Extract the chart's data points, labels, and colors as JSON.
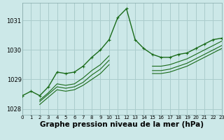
{
  "background_color": "#cce8e8",
  "grid_color": "#aacccc",
  "line_color": "#1a6b1a",
  "x_min": 0,
  "x_max": 23,
  "y_min": 1027.8,
  "y_max": 1031.6,
  "y_ticks": [
    1028,
    1029,
    1030,
    1031
  ],
  "xlabel": "Graphe pression niveau de la mer (hPa)",
  "xlabel_fontsize": 7.5,
  "series": [
    {
      "y": [
        1028.45,
        1028.6,
        1028.45,
        1028.75,
        1029.25,
        1029.2,
        1029.25,
        1029.45,
        1029.75,
        1030.0,
        1030.35,
        1031.1,
        1031.4,
        1030.35,
        1030.05,
        1029.85,
        1029.75,
        1029.75,
        1029.85,
        1029.9,
        1030.05,
        1030.2,
        1030.35,
        1030.4
      ],
      "marker": true,
      "lw": 1.0
    },
    {
      "y": [
        1028.45,
        null,
        1028.3,
        1028.55,
        1028.85,
        1028.8,
        1028.85,
        1029.05,
        1029.3,
        1029.5,
        1029.8,
        null,
        null,
        null,
        null,
        1029.45,
        1029.45,
        1029.5,
        1029.6,
        1029.7,
        1029.85,
        1030.0,
        1030.15,
        1030.3
      ],
      "marker": false,
      "lw": 0.8
    },
    {
      "y": [
        1028.45,
        null,
        1028.25,
        1028.5,
        1028.75,
        1028.7,
        1028.75,
        1028.9,
        1029.15,
        1029.35,
        1029.65,
        null,
        null,
        null,
        null,
        1029.3,
        1029.3,
        1029.35,
        1029.45,
        1029.55,
        1029.7,
        1029.85,
        1030.0,
        1030.15
      ],
      "marker": false,
      "lw": 0.8
    },
    {
      "y": [
        1028.45,
        null,
        1028.15,
        1028.4,
        1028.65,
        1028.6,
        1028.65,
        1028.8,
        1029.0,
        1029.2,
        1029.5,
        null,
        null,
        null,
        null,
        1029.2,
        1029.2,
        1029.25,
        1029.35,
        1029.45,
        1029.6,
        1029.75,
        1029.9,
        1030.05
      ],
      "marker": false,
      "lw": 0.8
    }
  ]
}
